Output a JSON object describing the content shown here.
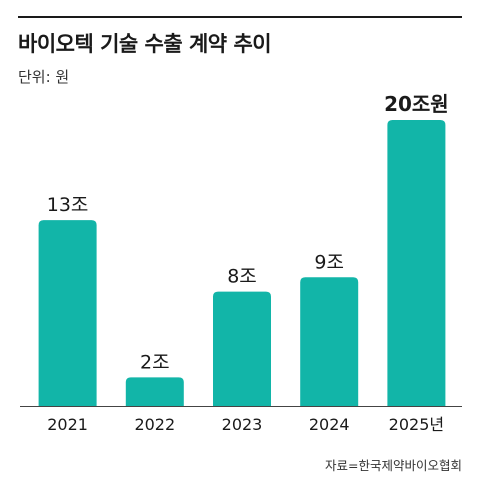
{
  "title": "바이오텍 기술 수출 계약 추이",
  "unit_label": "단위: 원",
  "source": "자료=한국제약바이오협회",
  "colors": {
    "bar": "#12B5A8",
    "axis": "#444444",
    "text": "#1a1a1a"
  },
  "chart_data": {
    "type": "bar",
    "categories": [
      "2021",
      "2022",
      "2023",
      "2024",
      "2025년"
    ],
    "values": [
      13,
      2,
      8,
      9,
      20
    ],
    "data_labels": [
      "13조",
      "2조",
      "8조",
      "9조",
      "20조원"
    ],
    "highlight_index": 4,
    "ylim": [
      0,
      20
    ],
    "grid": false,
    "legend": "none"
  }
}
